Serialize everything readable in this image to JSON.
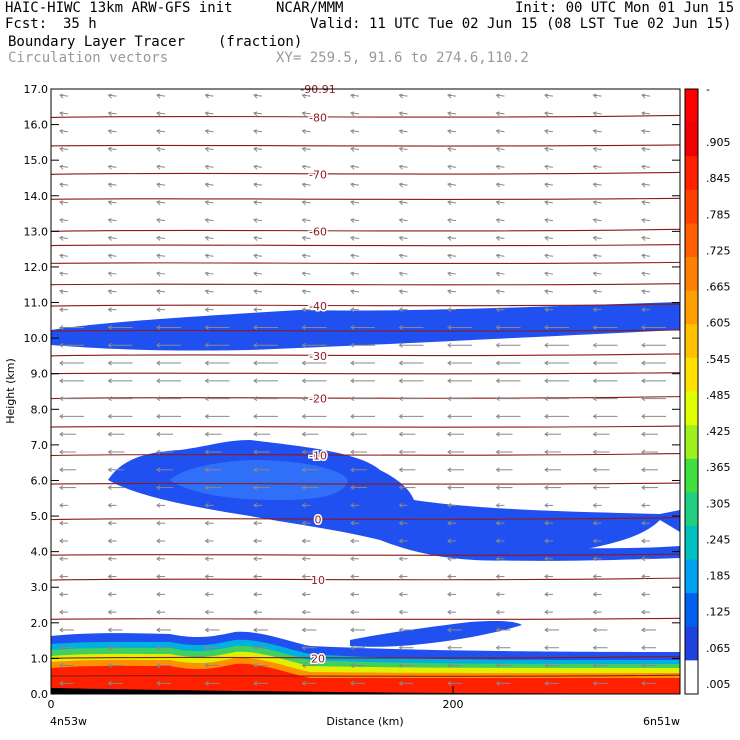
{
  "header": {
    "model": "HAIC-HIWC 13km ARW-GFS init",
    "org": "NCAR/MMM",
    "init": "Init: 00 UTC Mon 01 Jun 15",
    "fcst_label": "Fcst:",
    "fcst_value": "35 h",
    "valid": "Valid: 11 UTC Tue 02 Jun 15 (08 LST Tue 02 Jun 15)",
    "field": "Boundary Layer Tracer",
    "field_unit": "(fraction)",
    "vectors": "Circulation vectors",
    "xy": "XY= 259.5, 91.6 to 274.6,110.2"
  },
  "chart_data": {
    "type": "heatmap",
    "ylabel": "Height (km)",
    "xlabel": "Distance (km)",
    "x_left_label": "4n53w",
    "x_right_label": "6n51w",
    "ylim": [
      0,
      17
    ],
    "yticks": [
      "0.0",
      "1.0",
      "2.0",
      "3.0",
      "4.0",
      "5.0",
      "6.0",
      "7.0",
      "8.0",
      "9.0",
      "10.0",
      "11.0",
      "12.0",
      "13.0",
      "14.0",
      "15.0",
      "16.0",
      "17.0"
    ],
    "xticks": [
      "0",
      "200"
    ],
    "colorbar": {
      "labels": [
        "-",
        ".905",
        ".845",
        ".785",
        ".725",
        ".665",
        ".605",
        ".545",
        ".485",
        ".425",
        ".365",
        ".305",
        ".245",
        ".185",
        ".125",
        ".065",
        ".005"
      ],
      "colors": [
        "#ff0000",
        "#f00000",
        "#ff2000",
        "#ff4000",
        "#ff6000",
        "#ff8000",
        "#ffa000",
        "#ffc000",
        "#ffe000",
        "#e0ff00",
        "#a0f020",
        "#40e040",
        "#20d080",
        "#00c0c0",
        "#00a0f0",
        "#0060f0",
        "#2040e0",
        "#ffffff"
      ]
    },
    "temperature_contours": [
      {
        "label": "20",
        "height_km": 1.0
      },
      {
        "label": "10",
        "height_km": 3.2
      },
      {
        "label": "0",
        "height_km": 4.9
      },
      {
        "label": "-10",
        "height_km": 6.7
      },
      {
        "label": "-20",
        "height_km": 8.3
      },
      {
        "label": "-30",
        "height_km": 9.5
      },
      {
        "label": "-40",
        "height_km": 10.9
      },
      {
        "label": "-60",
        "height_km": 13.0
      },
      {
        "label": "-70",
        "height_km": 14.6
      },
      {
        "label": "-80",
        "height_km": 16.2
      },
      {
        "label": "-90.91",
        "height_km": 17.0
      }
    ],
    "grid": false,
    "legend": "right"
  }
}
